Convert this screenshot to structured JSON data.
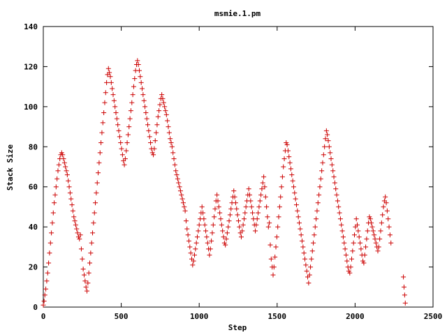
{
  "chart_data": {
    "type": "scatter",
    "title": "msmie.1.pm",
    "xlabel": "Step",
    "ylabel": "Stack Size",
    "xlim": [
      0,
      2500
    ],
    "ylim": [
      0,
      140
    ],
    "xticks": [
      0,
      500,
      1000,
      1500,
      2000,
      2500
    ],
    "yticks": [
      0,
      20,
      40,
      60,
      80,
      100,
      120,
      140
    ],
    "marker": "plus",
    "color": "#cc0000",
    "grid": false,
    "legend": false,
    "points": [
      [
        0,
        1
      ],
      [
        5,
        3
      ],
      [
        10,
        6
      ],
      [
        16,
        9
      ],
      [
        22,
        13
      ],
      [
        28,
        17
      ],
      [
        34,
        22
      ],
      [
        40,
        27
      ],
      [
        46,
        32
      ],
      [
        52,
        37
      ],
      [
        58,
        42
      ],
      [
        64,
        47
      ],
      [
        70,
        52
      ],
      [
        76,
        56
      ],
      [
        82,
        60
      ],
      [
        88,
        64
      ],
      [
        94,
        68
      ],
      [
        100,
        71
      ],
      [
        106,
        74
      ],
      [
        112,
        76
      ],
      [
        118,
        77
      ],
      [
        124,
        76
      ],
      [
        130,
        74
      ],
      [
        136,
        72
      ],
      [
        142,
        70
      ],
      [
        148,
        68
      ],
      [
        154,
        66
      ],
      [
        160,
        63
      ],
      [
        166,
        60
      ],
      [
        172,
        57
      ],
      [
        178,
        54
      ],
      [
        184,
        51
      ],
      [
        190,
        48
      ],
      [
        196,
        45
      ],
      [
        202,
        43
      ],
      [
        208,
        41
      ],
      [
        214,
        39
      ],
      [
        220,
        37
      ],
      [
        226,
        35
      ],
      [
        232,
        34
      ],
      [
        238,
        36
      ],
      [
        244,
        29
      ],
      [
        250,
        24
      ],
      [
        256,
        19
      ],
      [
        262,
        16
      ],
      [
        268,
        13
      ],
      [
        274,
        10
      ],
      [
        280,
        8
      ],
      [
        286,
        12
      ],
      [
        292,
        17
      ],
      [
        298,
        22
      ],
      [
        304,
        27
      ],
      [
        310,
        32
      ],
      [
        316,
        37
      ],
      [
        322,
        42
      ],
      [
        328,
        47
      ],
      [
        334,
        52
      ],
      [
        340,
        57
      ],
      [
        346,
        62
      ],
      [
        352,
        67
      ],
      [
        358,
        72
      ],
      [
        364,
        77
      ],
      [
        370,
        82
      ],
      [
        376,
        87
      ],
      [
        382,
        92
      ],
      [
        388,
        97
      ],
      [
        394,
        102
      ],
      [
        400,
        107
      ],
      [
        406,
        112
      ],
      [
        412,
        116
      ],
      [
        418,
        119
      ],
      [
        424,
        117
      ],
      [
        430,
        115
      ],
      [
        436,
        112
      ],
      [
        442,
        109
      ],
      [
        448,
        106
      ],
      [
        454,
        103
      ],
      [
        460,
        100
      ],
      [
        466,
        97
      ],
      [
        472,
        94
      ],
      [
        478,
        91
      ],
      [
        484,
        88
      ],
      [
        490,
        85
      ],
      [
        496,
        82
      ],
      [
        502,
        79
      ],
      [
        508,
        76
      ],
      [
        514,
        73
      ],
      [
        520,
        71
      ],
      [
        526,
        74
      ],
      [
        532,
        78
      ],
      [
        538,
        82
      ],
      [
        544,
        86
      ],
      [
        550,
        90
      ],
      [
        556,
        94
      ],
      [
        562,
        98
      ],
      [
        568,
        102
      ],
      [
        574,
        106
      ],
      [
        580,
        110
      ],
      [
        586,
        114
      ],
      [
        592,
        118
      ],
      [
        598,
        121
      ],
      [
        604,
        123
      ],
      [
        610,
        121
      ],
      [
        616,
        118
      ],
      [
        622,
        115
      ],
      [
        628,
        112
      ],
      [
        634,
        109
      ],
      [
        640,
        106
      ],
      [
        646,
        103
      ],
      [
        652,
        100
      ],
      [
        658,
        97
      ],
      [
        664,
        94
      ],
      [
        670,
        91
      ],
      [
        676,
        88
      ],
      [
        682,
        85
      ],
      [
        688,
        82
      ],
      [
        694,
        79
      ],
      [
        700,
        77
      ],
      [
        706,
        76
      ],
      [
        712,
        79
      ],
      [
        718,
        83
      ],
      [
        724,
        87
      ],
      [
        730,
        91
      ],
      [
        736,
        95
      ],
      [
        742,
        98
      ],
      [
        748,
        101
      ],
      [
        754,
        104
      ],
      [
        760,
        106
      ],
      [
        766,
        104
      ],
      [
        772,
        102
      ],
      [
        778,
        100
      ],
      [
        784,
        98
      ],
      [
        790,
        96
      ],
      [
        796,
        93
      ],
      [
        802,
        90
      ],
      [
        808,
        87
      ],
      [
        814,
        84
      ],
      [
        820,
        82
      ],
      [
        826,
        80
      ],
      [
        832,
        77
      ],
      [
        838,
        74
      ],
      [
        844,
        71
      ],
      [
        850,
        68
      ],
      [
        856,
        66
      ],
      [
        862,
        64
      ],
      [
        868,
        62
      ],
      [
        874,
        60
      ],
      [
        880,
        58
      ],
      [
        886,
        56
      ],
      [
        892,
        54
      ],
      [
        898,
        52
      ],
      [
        904,
        50
      ],
      [
        910,
        48
      ],
      [
        916,
        43
      ],
      [
        922,
        39
      ],
      [
        928,
        36
      ],
      [
        934,
        33
      ],
      [
        940,
        30
      ],
      [
        946,
        27
      ],
      [
        952,
        24
      ],
      [
        958,
        21
      ],
      [
        964,
        23
      ],
      [
        970,
        26
      ],
      [
        976,
        29
      ],
      [
        982,
        32
      ],
      [
        988,
        35
      ],
      [
        994,
        38
      ],
      [
        1000,
        41
      ],
      [
        1006,
        44
      ],
      [
        1012,
        47
      ],
      [
        1018,
        50
      ],
      [
        1024,
        47
      ],
      [
        1030,
        44
      ],
      [
        1036,
        41
      ],
      [
        1042,
        38
      ],
      [
        1048,
        35
      ],
      [
        1054,
        32
      ],
      [
        1060,
        29
      ],
      [
        1066,
        26
      ],
      [
        1072,
        29
      ],
      [
        1078,
        33
      ],
      [
        1084,
        37
      ],
      [
        1090,
        41
      ],
      [
        1096,
        45
      ],
      [
        1102,
        49
      ],
      [
        1108,
        53
      ],
      [
        1114,
        56
      ],
      [
        1120,
        53
      ],
      [
        1126,
        50
      ],
      [
        1132,
        47
      ],
      [
        1138,
        44
      ],
      [
        1144,
        41
      ],
      [
        1150,
        38
      ],
      [
        1156,
        35
      ],
      [
        1162,
        32
      ],
      [
        1168,
        31
      ],
      [
        1174,
        34
      ],
      [
        1180,
        37
      ],
      [
        1186,
        40
      ],
      [
        1192,
        43
      ],
      [
        1198,
        46
      ],
      [
        1204,
        49
      ],
      [
        1210,
        52
      ],
      [
        1216,
        55
      ],
      [
        1222,
        58
      ],
      [
        1228,
        55
      ],
      [
        1234,
        52
      ],
      [
        1240,
        49
      ],
      [
        1246,
        46
      ],
      [
        1252,
        43
      ],
      [
        1258,
        40
      ],
      [
        1264,
        37
      ],
      [
        1270,
        35
      ],
      [
        1276,
        38
      ],
      [
        1282,
        41
      ],
      [
        1288,
        44
      ],
      [
        1294,
        47
      ],
      [
        1300,
        50
      ],
      [
        1306,
        53
      ],
      [
        1312,
        56
      ],
      [
        1318,
        59
      ],
      [
        1324,
        56
      ],
      [
        1330,
        53
      ],
      [
        1336,
        50
      ],
      [
        1342,
        47
      ],
      [
        1348,
        44
      ],
      [
        1354,
        41
      ],
      [
        1360,
        38
      ],
      [
        1366,
        41
      ],
      [
        1372,
        44
      ],
      [
        1378,
        47
      ],
      [
        1384,
        50
      ],
      [
        1390,
        53
      ],
      [
        1396,
        56
      ],
      [
        1402,
        59
      ],
      [
        1408,
        62
      ],
      [
        1414,
        65
      ],
      [
        1420,
        60
      ],
      [
        1426,
        55
      ],
      [
        1432,
        50
      ],
      [
        1438,
        45
      ],
      [
        1444,
        40
      ],
      [
        1450,
        42
      ],
      [
        1456,
        31
      ],
      [
        1462,
        24
      ],
      [
        1468,
        20
      ],
      [
        1474,
        16
      ],
      [
        1480,
        20
      ],
      [
        1486,
        25
      ],
      [
        1492,
        30
      ],
      [
        1498,
        35
      ],
      [
        1504,
        40
      ],
      [
        1510,
        45
      ],
      [
        1516,
        50
      ],
      [
        1522,
        55
      ],
      [
        1528,
        60
      ],
      [
        1534,
        65
      ],
      [
        1540,
        70
      ],
      [
        1546,
        74
      ],
      [
        1552,
        78
      ],
      [
        1558,
        82
      ],
      [
        1564,
        81
      ],
      [
        1570,
        78
      ],
      [
        1576,
        75
      ],
      [
        1582,
        72
      ],
      [
        1588,
        69
      ],
      [
        1594,
        66
      ],
      [
        1600,
        63
      ],
      [
        1606,
        60
      ],
      [
        1612,
        57
      ],
      [
        1618,
        54
      ],
      [
        1624,
        51
      ],
      [
        1630,
        48
      ],
      [
        1636,
        45
      ],
      [
        1642,
        42
      ],
      [
        1648,
        39
      ],
      [
        1654,
        36
      ],
      [
        1660,
        33
      ],
      [
        1666,
        30
      ],
      [
        1672,
        27
      ],
      [
        1678,
        24
      ],
      [
        1684,
        21
      ],
      [
        1690,
        18
      ],
      [
        1696,
        15
      ],
      [
        1702,
        12
      ],
      [
        1708,
        16
      ],
      [
        1714,
        20
      ],
      [
        1720,
        24
      ],
      [
        1726,
        28
      ],
      [
        1732,
        32
      ],
      [
        1738,
        36
      ],
      [
        1744,
        40
      ],
      [
        1750,
        44
      ],
      [
        1756,
        48
      ],
      [
        1762,
        52
      ],
      [
        1768,
        56
      ],
      [
        1774,
        60
      ],
      [
        1780,
        64
      ],
      [
        1786,
        68
      ],
      [
        1792,
        72
      ],
      [
        1798,
        76
      ],
      [
        1804,
        80
      ],
      [
        1810,
        84
      ],
      [
        1816,
        88
      ],
      [
        1822,
        86
      ],
      [
        1828,
        83
      ],
      [
        1834,
        80
      ],
      [
        1840,
        77
      ],
      [
        1846,
        74
      ],
      [
        1852,
        71
      ],
      [
        1858,
        68
      ],
      [
        1864,
        65
      ],
      [
        1870,
        62
      ],
      [
        1876,
        59
      ],
      [
        1882,
        56
      ],
      [
        1888,
        53
      ],
      [
        1894,
        50
      ],
      [
        1900,
        47
      ],
      [
        1906,
        44
      ],
      [
        1912,
        41
      ],
      [
        1918,
        38
      ],
      [
        1924,
        35
      ],
      [
        1930,
        32
      ],
      [
        1936,
        29
      ],
      [
        1942,
        26
      ],
      [
        1948,
        23
      ],
      [
        1954,
        20
      ],
      [
        1960,
        18
      ],
      [
        1966,
        17
      ],
      [
        1972,
        20
      ],
      [
        1978,
        24
      ],
      [
        1984,
        28
      ],
      [
        1990,
        32
      ],
      [
        1996,
        36
      ],
      [
        2002,
        40
      ],
      [
        2008,
        44
      ],
      [
        2014,
        41
      ],
      [
        2020,
        38
      ],
      [
        2026,
        35
      ],
      [
        2032,
        32
      ],
      [
        2038,
        29
      ],
      [
        2044,
        26
      ],
      [
        2050,
        23
      ],
      [
        2056,
        22
      ],
      [
        2062,
        26
      ],
      [
        2068,
        30
      ],
      [
        2074,
        34
      ],
      [
        2080,
        38
      ],
      [
        2086,
        42
      ],
      [
        2092,
        45
      ],
      [
        2098,
        44
      ],
      [
        2104,
        42
      ],
      [
        2110,
        40
      ],
      [
        2116,
        38
      ],
      [
        2122,
        36
      ],
      [
        2128,
        34
      ],
      [
        2134,
        32
      ],
      [
        2140,
        30
      ],
      [
        2146,
        28
      ],
      [
        2152,
        30
      ],
      [
        2158,
        34
      ],
      [
        2164,
        38
      ],
      [
        2170,
        42
      ],
      [
        2176,
        46
      ],
      [
        2182,
        50
      ],
      [
        2188,
        53
      ],
      [
        2194,
        55
      ],
      [
        2200,
        52
      ],
      [
        2206,
        48
      ],
      [
        2212,
        44
      ],
      [
        2218,
        40
      ],
      [
        2224,
        36
      ],
      [
        2230,
        32
      ],
      [
        2310,
        15
      ],
      [
        2314,
        10
      ],
      [
        2318,
        6
      ],
      [
        2322,
        2
      ]
    ]
  }
}
